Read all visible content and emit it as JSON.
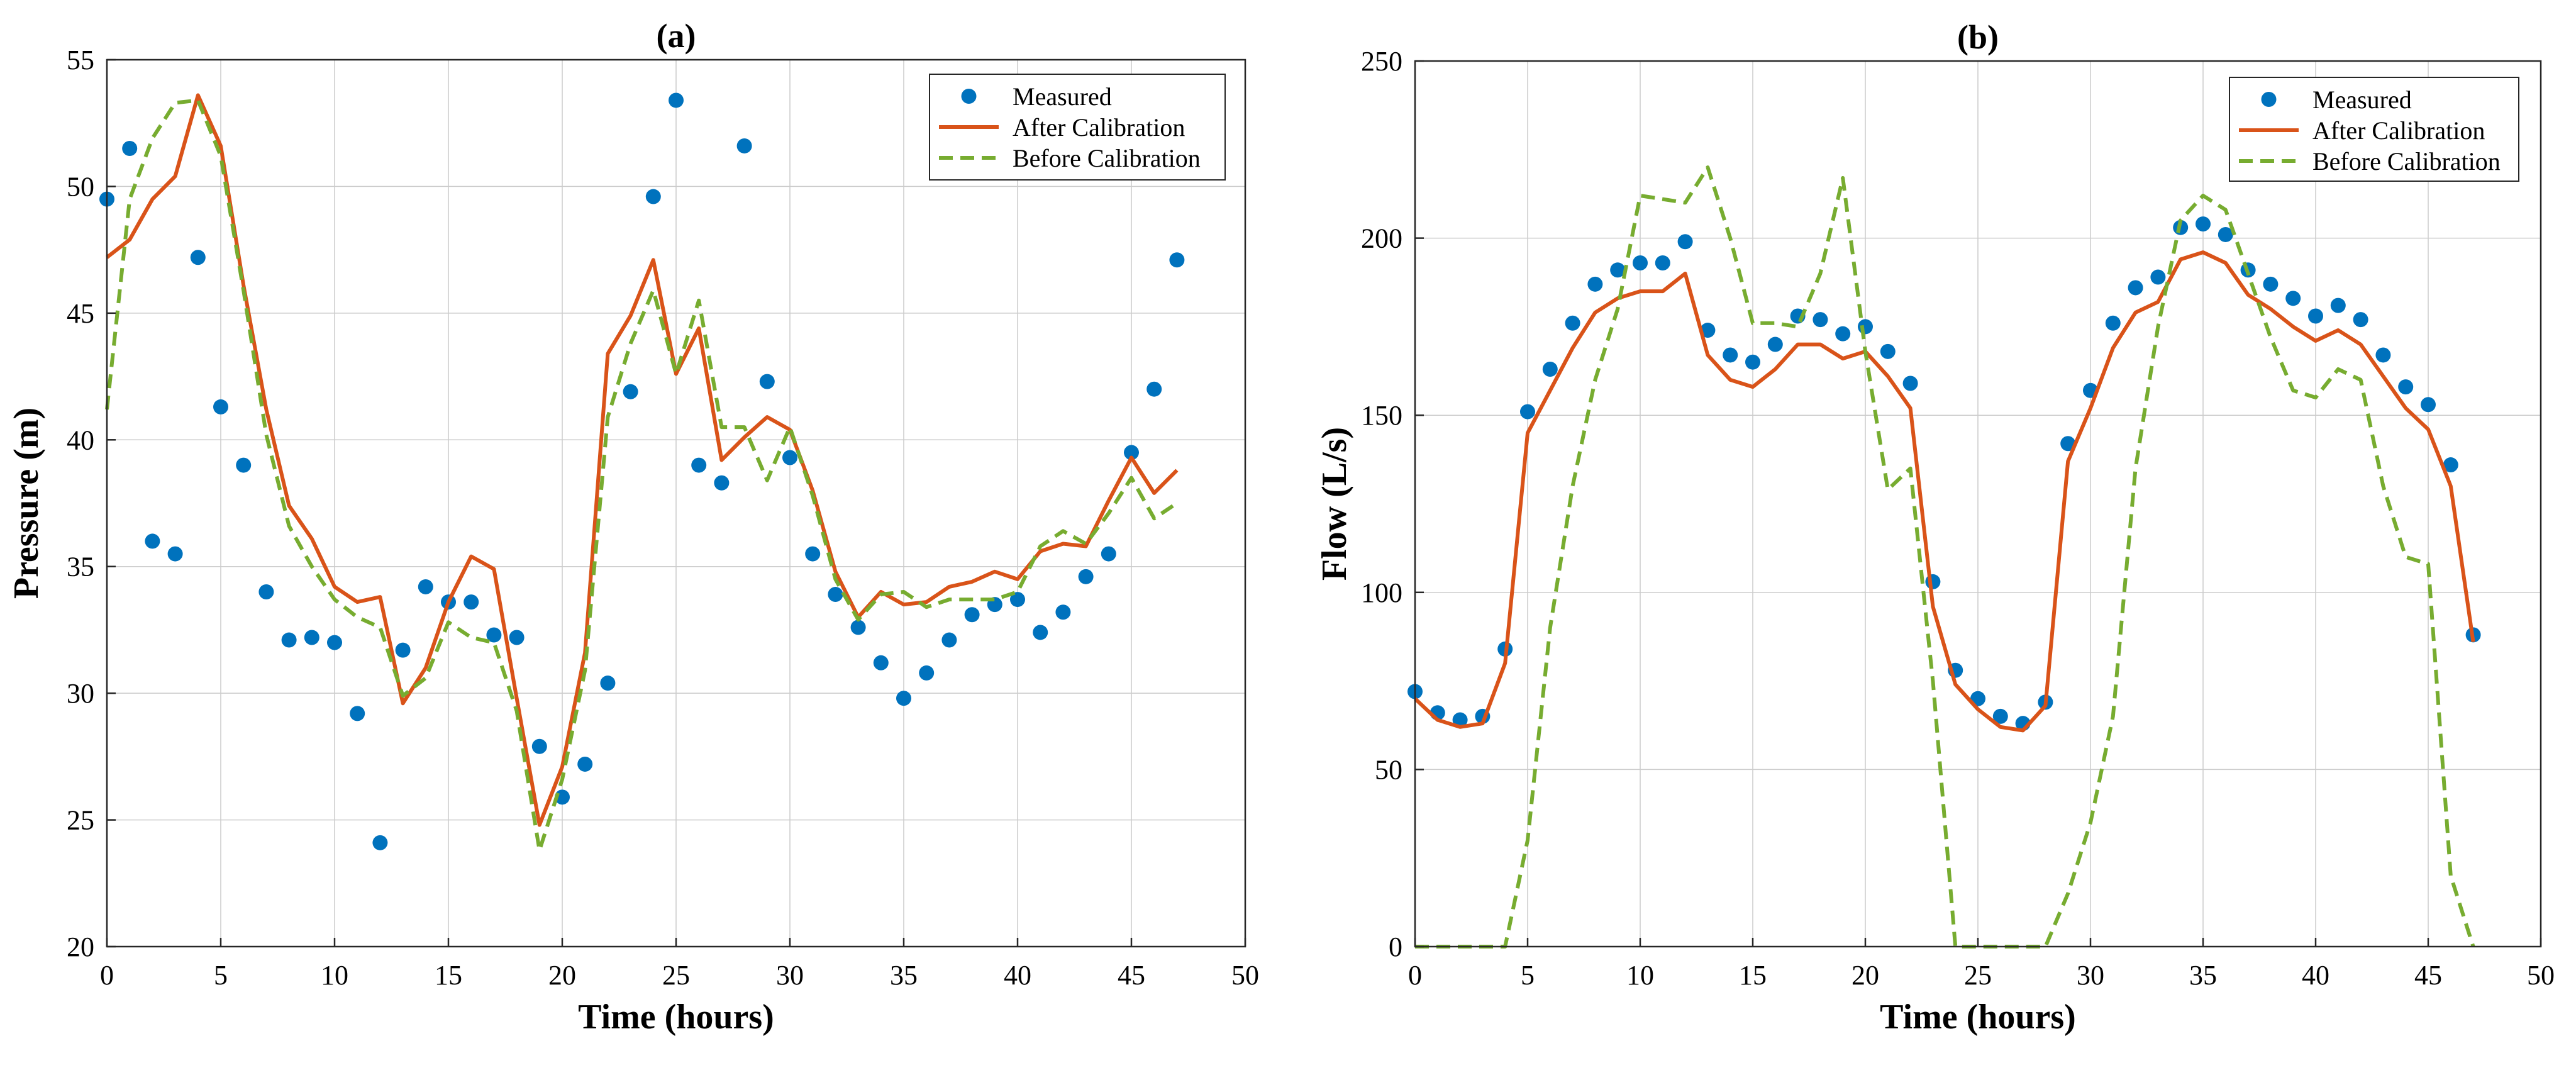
{
  "chart_data": [
    {
      "type": "line",
      "title": "(a)",
      "xlabel": "Time (hours)",
      "ylabel": "Pressure (m)",
      "xlim": [
        0,
        50
      ],
      "ylim": [
        20,
        55
      ],
      "xticks": [
        0,
        5,
        10,
        15,
        20,
        25,
        30,
        35,
        40,
        45,
        50
      ],
      "yticks": [
        20,
        25,
        30,
        35,
        40,
        45,
        50,
        55
      ],
      "grid": true,
      "legend_position": "top-right",
      "series": [
        {
          "name": "Measured",
          "style": "markers",
          "color": "#0072BD",
          "x": [
            0,
            1,
            2,
            3,
            4,
            5,
            6,
            7,
            8,
            9,
            10,
            11,
            12,
            13,
            14,
            15,
            16,
            17,
            18,
            19,
            20,
            21,
            22,
            23,
            24,
            25,
            26,
            27,
            28,
            29,
            30,
            31,
            32,
            33,
            34,
            35,
            36,
            37,
            38,
            39,
            40,
            41,
            42,
            43,
            44,
            45,
            46,
            47,
            48
          ],
          "values": [
            49.5,
            51.5,
            36.0,
            35.5,
            47.2,
            41.3,
            39.0,
            34.0,
            32.1,
            32.2,
            32.0,
            29.2,
            24.1,
            31.7,
            34.2,
            33.6,
            33.6,
            32.3,
            32.2,
            27.9,
            25.9,
            27.2,
            30.4,
            41.9,
            49.6,
            53.4,
            39.0,
            38.3,
            51.6,
            42.3,
            39.3,
            35.5,
            33.9,
            32.6,
            31.2,
            29.8,
            30.8,
            32.1,
            33.1,
            33.5,
            33.7,
            32.4,
            33.2,
            34.6,
            35.5,
            39.5,
            42.0,
            47.1,
            null
          ]
        },
        {
          "name": "After Calibration",
          "style": "solid",
          "color": "#D95319",
          "x": [
            0,
            1,
            2,
            3,
            4,
            5,
            6,
            7,
            8,
            9,
            10,
            11,
            12,
            13,
            14,
            15,
            16,
            17,
            18,
            19,
            20,
            21,
            22,
            23,
            24,
            25,
            26,
            27,
            28,
            29,
            30,
            31,
            32,
            33,
            34,
            35,
            36,
            37,
            38,
            39,
            40,
            41,
            42,
            43,
            44,
            45,
            46,
            47,
            48
          ],
          "values": [
            47.2,
            47.9,
            49.5,
            50.4,
            53.6,
            51.6,
            46.1,
            41.2,
            37.4,
            36.1,
            34.2,
            33.6,
            33.8,
            29.6,
            31.0,
            33.6,
            35.4,
            34.9,
            29.8,
            24.8,
            27.1,
            31.6,
            43.4,
            44.9,
            47.1,
            42.6,
            44.4,
            39.2,
            40.1,
            40.9,
            40.4,
            38.0,
            34.8,
            33.0,
            34.0,
            33.5,
            33.6,
            34.2,
            34.4,
            34.8,
            34.5,
            35.6,
            35.9,
            35.8,
            37.6,
            39.3,
            37.9,
            38.8,
            null
          ]
        },
        {
          "name": "Before Calibration",
          "style": "dashed",
          "color": "#77AC30",
          "x": [
            0,
            1,
            2,
            3,
            4,
            5,
            6,
            7,
            8,
            9,
            10,
            11,
            12,
            13,
            14,
            15,
            16,
            17,
            18,
            19,
            20,
            21,
            22,
            23,
            24,
            25,
            26,
            27,
            28,
            29,
            30,
            31,
            32,
            33,
            34,
            35,
            36,
            37,
            38,
            39,
            40,
            41,
            42,
            43,
            44,
            45,
            46,
            47,
            48
          ],
          "values": [
            41.2,
            49.5,
            51.9,
            53.3,
            53.4,
            51.2,
            45.9,
            40.2,
            36.6,
            35.0,
            33.7,
            33.0,
            32.6,
            29.9,
            30.6,
            32.8,
            32.2,
            32.0,
            29.3,
            23.8,
            26.6,
            30.9,
            40.9,
            43.8,
            45.9,
            42.6,
            45.5,
            40.5,
            40.5,
            38.4,
            40.5,
            37.8,
            34.5,
            32.9,
            33.9,
            34.0,
            33.4,
            33.7,
            33.7,
            33.7,
            34.0,
            35.8,
            36.4,
            35.9,
            37.1,
            38.5,
            36.9,
            37.5,
            null
          ]
        }
      ]
    },
    {
      "type": "line",
      "title": "(b)",
      "xlabel": "Time (hours)",
      "ylabel": "Flow (L/s)",
      "xlim": [
        0,
        50
      ],
      "ylim": [
        0,
        250
      ],
      "xticks": [
        0,
        5,
        10,
        15,
        20,
        25,
        30,
        35,
        40,
        45,
        50
      ],
      "yticks": [
        0,
        50,
        100,
        150,
        200,
        250
      ],
      "grid": true,
      "legend_position": "top-right",
      "series": [
        {
          "name": "Measured",
          "style": "markers",
          "color": "#0072BD",
          "x": [
            0,
            1,
            2,
            3,
            4,
            5,
            6,
            7,
            8,
            9,
            10,
            11,
            12,
            13,
            14,
            15,
            16,
            17,
            18,
            19,
            20,
            21,
            22,
            23,
            24,
            25,
            26,
            27,
            28,
            29,
            30,
            31,
            32,
            33,
            34,
            35,
            36,
            37,
            38,
            39,
            40,
            41,
            42,
            43,
            44,
            45,
            46,
            47,
            48
          ],
          "values": [
            72,
            66,
            64,
            65,
            84,
            151,
            163,
            176,
            187,
            191,
            193,
            193,
            199,
            174,
            167,
            165,
            170,
            178,
            177,
            173,
            175,
            168,
            159,
            103,
            78,
            70,
            65,
            63,
            69,
            142,
            157,
            176,
            186,
            189,
            203,
            204,
            201,
            191,
            187,
            183,
            178,
            181,
            177,
            167,
            158,
            153,
            136,
            88,
            null
          ]
        },
        {
          "name": "After Calibration",
          "style": "solid",
          "color": "#D95319",
          "x": [
            0,
            1,
            2,
            3,
            4,
            5,
            6,
            7,
            8,
            9,
            10,
            11,
            12,
            13,
            14,
            15,
            16,
            17,
            18,
            19,
            20,
            21,
            22,
            23,
            24,
            25,
            26,
            27,
            28,
            29,
            30,
            31,
            32,
            33,
            34,
            35,
            36,
            37,
            38,
            39,
            40,
            41,
            42,
            43,
            44,
            45,
            46,
            47,
            48
          ],
          "values": [
            70,
            64,
            62,
            63,
            80,
            145,
            157,
            169,
            179,
            183,
            185,
            185,
            190,
            167,
            160,
            158,
            163,
            170,
            170,
            166,
            168,
            161,
            152,
            96,
            74,
            67,
            62,
            61,
            68,
            137,
            152,
            169,
            179,
            182,
            194,
            196,
            193,
            184,
            180,
            175,
            171,
            174,
            170,
            161,
            152,
            146,
            130,
            86,
            null
          ]
        },
        {
          "name": "Before Calibration",
          "style": "dashed",
          "color": "#77AC30",
          "x": [
            0,
            1,
            2,
            3,
            4,
            5,
            6,
            7,
            8,
            9,
            10,
            11,
            12,
            13,
            14,
            15,
            16,
            17,
            18,
            19,
            20,
            21,
            22,
            23,
            24,
            25,
            26,
            27,
            28,
            29,
            30,
            31,
            32,
            33,
            34,
            35,
            36,
            37,
            38,
            39,
            40,
            41,
            42,
            43,
            44,
            45,
            46,
            47,
            48
          ],
          "values": [
            0,
            0,
            0,
            0,
            0,
            30,
            90,
            130,
            160,
            180,
            212,
            211,
            210,
            220,
            200,
            176,
            176,
            175,
            190,
            217,
            168,
            129,
            135,
            75,
            0,
            0,
            0,
            0,
            0,
            15,
            35,
            65,
            135,
            175,
            205,
            212,
            208,
            190,
            172,
            157,
            155,
            163,
            160,
            130,
            110,
            108,
            20,
            0,
            null
          ]
        }
      ]
    }
  ]
}
